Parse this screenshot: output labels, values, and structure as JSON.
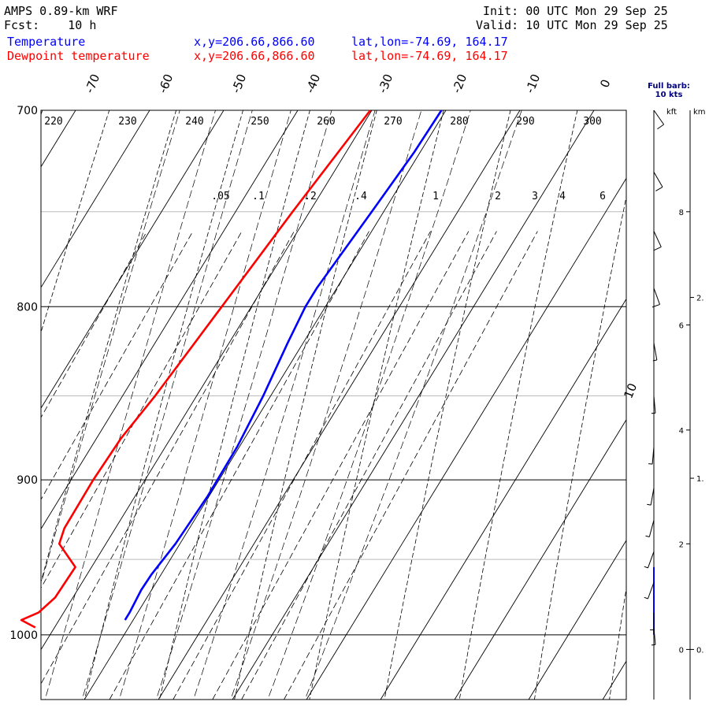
{
  "header": {
    "model": "AMPS 0.89-km WRF",
    "fcst_label": "Fcst:",
    "fcst_value": "10 h",
    "init_label": "Init:",
    "init_value": "00 UTC Mon 29 Sep 25",
    "valid_label": "Valid:",
    "valid_value": "10 UTC Mon 29 Sep 25"
  },
  "legend": [
    {
      "name": "Temperature",
      "xy": "x,y=206.66,866.60",
      "latlon": "lat,lon=-74.69, 164.17",
      "color": "#0000ff"
    },
    {
      "name": "Dewpoint temperature",
      "xy": "x,y=206.66,866.60",
      "latlon": "lat,lon=-74.69, 164.17",
      "color": "#ff0000"
    }
  ],
  "barb_note": {
    "line1": "Full barb:",
    "line2": "10 kts"
  },
  "height_axis": {
    "kft_label": "kft",
    "km_label": "km"
  },
  "chart_data": {
    "type": "line",
    "title": "",
    "xlabel": "",
    "ylabel": "",
    "pressure_axis": {
      "top_hPa": 700,
      "bottom_hPa": 1045,
      "log_scale": true,
      "labels": [
        "700",
        "800",
        "900",
        "1000"
      ]
    },
    "secondary_pressure_lines_hPa": [
      750,
      850,
      950
    ],
    "isotherm_labels_C": [
      "-70",
      "-60",
      "-50",
      "-40",
      "-30",
      "-20",
      "-10",
      "0",
      "10"
    ],
    "dry_adiabat_labels_K": [
      "220",
      "230",
      "240",
      "250",
      "260",
      "270",
      "280",
      "290",
      "300"
    ],
    "mixing_ratio_labels_gkg": [
      ".05",
      ".1",
      ".2",
      ".4",
      "1",
      "2",
      "3",
      "4",
      "6"
    ],
    "series": [
      {
        "name": "Temperature",
        "color": "#0000ff",
        "points": [
          [
            700,
            -20.6
          ],
          [
            720,
            -20.8
          ],
          [
            750,
            -21.6
          ],
          [
            790,
            -22.7
          ],
          [
            800,
            -22.7
          ],
          [
            820,
            -22.1
          ],
          [
            850,
            -21.0
          ],
          [
            880,
            -20.3
          ],
          [
            910,
            -20.2
          ],
          [
            940,
            -20.6
          ],
          [
            960,
            -21.3
          ],
          [
            970,
            -21.4
          ],
          [
            985,
            -21.1
          ],
          [
            990,
            -21.1
          ]
        ]
      },
      {
        "name": "Dewpoint temperature",
        "color": "#ff0000",
        "points": [
          [
            700,
            -30.2
          ],
          [
            750,
            -32.3
          ],
          [
            800,
            -34.0
          ],
          [
            850,
            -35.6
          ],
          [
            875,
            -36.7
          ],
          [
            900,
            -37.0
          ],
          [
            930,
            -36.9
          ],
          [
            940,
            -36.3
          ],
          [
            955,
            -32.2
          ],
          [
            975,
            -32.4
          ],
          [
            985,
            -33.4
          ],
          [
            990,
            -35.1
          ],
          [
            995,
            -32.6
          ]
        ]
      }
    ],
    "wind_barbs": [
      {
        "p": 700,
        "dir_deg": 145,
        "spd_kt": 10
      },
      {
        "p": 730,
        "dir_deg": 150,
        "spd_kt": 10
      },
      {
        "p": 760,
        "dir_deg": 155,
        "spd_kt": 10
      },
      {
        "p": 790,
        "dir_deg": 160,
        "spd_kt": 10
      },
      {
        "p": 820,
        "dir_deg": 170,
        "spd_kt": 5
      },
      {
        "p": 850,
        "dir_deg": 175,
        "spd_kt": 5
      },
      {
        "p": 880,
        "dir_deg": 185,
        "spd_kt": 5
      },
      {
        "p": 905,
        "dir_deg": 190,
        "spd_kt": 5
      },
      {
        "p": 925,
        "dir_deg": 195,
        "spd_kt": 5
      },
      {
        "p": 945,
        "dir_deg": 200,
        "spd_kt": 5
      },
      {
        "p": 965,
        "dir_deg": 200,
        "spd_kt": 5
      },
      {
        "p": 985,
        "dir_deg": 180,
        "spd_kt": 5
      },
      {
        "p": 995,
        "dir_deg": 175,
        "spd_kt": 5
      }
    ],
    "height_ticks_kft": [
      {
        "p": 750,
        "label": "8"
      },
      {
        "p": 810,
        "label": "6"
      },
      {
        "p": 870,
        "label": "4"
      },
      {
        "p": 940,
        "label": "2"
      },
      {
        "p": 1010,
        "label": "0"
      }
    ],
    "height_ticks_km": [
      {
        "p": 795,
        "label": "2."
      },
      {
        "p": 899,
        "label": "1."
      },
      {
        "p": 1010,
        "label": "0."
      }
    ]
  }
}
